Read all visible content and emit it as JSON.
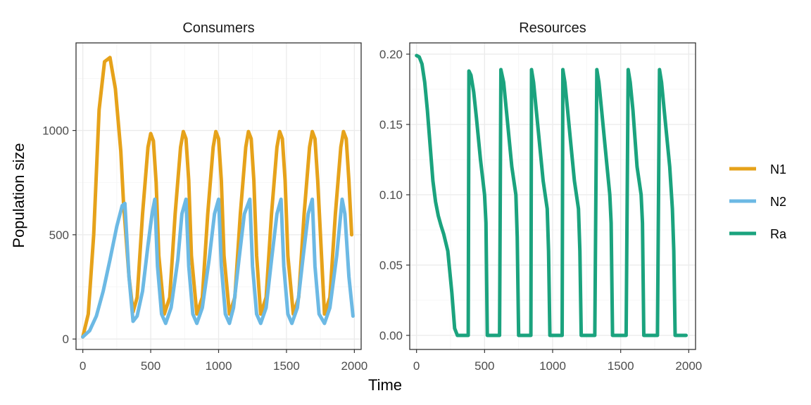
{
  "chart_data": {
    "type": "line",
    "xlabel": "Time",
    "ylabel": "Population size",
    "legend": {
      "placement": "right",
      "entries": [
        {
          "name": "N1",
          "color": "#E6A21A"
        },
        {
          "name": "N2",
          "color": "#6CB9E4"
        },
        {
          "name": "Ra",
          "color": "#1BA37E"
        }
      ]
    },
    "panels": [
      {
        "title": "Consumers",
        "xlim": [
          -50,
          2050
        ],
        "ylim": [
          -50,
          1420
        ],
        "xticks": [
          0,
          500,
          1000,
          1500,
          2000
        ],
        "xtick_labels": [
          "0",
          "500",
          "1000",
          "1500",
          "2000"
        ],
        "yticks": [
          0,
          500,
          1000
        ],
        "ytick_labels": [
          "0",
          "500",
          "1000"
        ],
        "grid": true,
        "series": [
          {
            "name": "N1",
            "color": "#E6A21A",
            "x": [
              0,
              40,
              80,
              120,
              160,
              200,
              240,
              280,
              300,
              340,
              370,
              400,
              440,
              480,
              500,
              520,
              540,
              560,
              600,
              640,
              680,
              720,
              740,
              760,
              780,
              800,
              840,
              880,
              920,
              960,
              980,
              1000,
              1020,
              1040,
              1080,
              1120,
              1160,
              1200,
              1220,
              1240,
              1260,
              1280,
              1310,
              1350,
              1390,
              1430,
              1450,
              1470,
              1490,
              1510,
              1550,
              1590,
              1630,
              1670,
              1690,
              1710,
              1730,
              1780,
              1820,
              1860,
              1900,
              1920,
              1940,
              1960,
              1980
            ],
            "y": [
              10,
              120,
              500,
              1100,
              1330,
              1350,
              1200,
              900,
              650,
              300,
              130,
              200,
              600,
              920,
              985,
              950,
              750,
              400,
              120,
              200,
              600,
              920,
              995,
              960,
              760,
              400,
              120,
              200,
              600,
              920,
              995,
              960,
              760,
              400,
              120,
              200,
              600,
              920,
              995,
              960,
              760,
              400,
              120,
              200,
              600,
              920,
              995,
              960,
              760,
              400,
              120,
              200,
              600,
              920,
              995,
              960,
              760,
              120,
              200,
              600,
              920,
              995,
              960,
              760,
              500
            ]
          },
          {
            "name": "N2",
            "color": "#6CB9E4",
            "x": [
              0,
              50,
              100,
              150,
              200,
              250,
              290,
              310,
              340,
              370,
              400,
              440,
              480,
              510,
              530,
              550,
              580,
              610,
              650,
              700,
              730,
              760,
              780,
              810,
              840,
              880,
              930,
              970,
              1000,
              1020,
              1050,
              1080,
              1110,
              1150,
              1190,
              1230,
              1250,
              1280,
              1310,
              1350,
              1390,
              1430,
              1460,
              1480,
              1510,
              1540,
              1580,
              1620,
              1660,
              1690,
              1710,
              1740,
              1780,
              1820,
              1870,
              1910,
              1930,
              1960,
              1990
            ],
            "y": [
              10,
              40,
              110,
              230,
              380,
              540,
              640,
              650,
              300,
              85,
              110,
              230,
              450,
              600,
              670,
              350,
              120,
              75,
              150,
              380,
              600,
              670,
              350,
              120,
              75,
              150,
              380,
              600,
              670,
              350,
              120,
              75,
              150,
              380,
              600,
              670,
              350,
              120,
              75,
              150,
              380,
              600,
              670,
              350,
              120,
              75,
              150,
              380,
              600,
              670,
              350,
              120,
              75,
              150,
              400,
              670,
              600,
              300,
              110
            ]
          }
        ]
      },
      {
        "title": "Resources",
        "xlim": [
          -50,
          2050
        ],
        "ylim": [
          -0.01,
          0.208
        ],
        "xticks": [
          0,
          500,
          1000,
          1500,
          2000
        ],
        "xtick_labels": [
          "0",
          "500",
          "1000",
          "1500",
          "2000"
        ],
        "yticks": [
          0,
          0.05,
          0.1,
          0.15,
          0.2
        ],
        "ytick_labels": [
          "0.00",
          "0.05",
          "0.10",
          "0.15",
          "0.20"
        ],
        "grid": true,
        "series": [
          {
            "name": "Ra",
            "color": "#1BA37E",
            "x": [
              0,
              20,
              40,
              60,
              80,
              100,
              120,
              140,
              160,
              180,
              200,
              230,
              260,
              280,
              300,
              310,
              330,
              360,
              380,
              385,
              400,
              420,
              440,
              470,
              500,
              510,
              520,
              560,
              600,
              610,
              620,
              640,
              660,
              700,
              730,
              740,
              750,
              800,
              840,
              845,
              860,
              880,
              900,
              930,
              960,
              970,
              980,
              1020,
              1070,
              1075,
              1090,
              1110,
              1130,
              1160,
              1190,
              1200,
              1210,
              1250,
              1300,
              1310,
              1325,
              1340,
              1360,
              1400,
              1420,
              1430,
              1440,
              1480,
              1530,
              1540,
              1555,
              1570,
              1590,
              1620,
              1650,
              1660,
              1670,
              1710,
              1760,
              1770,
              1785,
              1800,
              1820,
              1860,
              1880,
              1890,
              1900,
              1950,
              1980
            ],
            "y": [
              0.199,
              0.198,
              0.193,
              0.18,
              0.16,
              0.135,
              0.11,
              0.095,
              0.085,
              0.078,
              0.072,
              0.06,
              0.03,
              0.005,
              0.0,
              0.0,
              0.0,
              0.0,
              0.0,
              0.188,
              0.185,
              0.173,
              0.155,
              0.125,
              0.1,
              0.08,
              0.0,
              0.0,
              0.0,
              0.0,
              0.189,
              0.18,
              0.16,
              0.12,
              0.1,
              0.07,
              0.0,
              0.0,
              0.0,
              0.189,
              0.18,
              0.16,
              0.14,
              0.11,
              0.09,
              0.06,
              0.0,
              0.0,
              0.0,
              0.189,
              0.18,
              0.16,
              0.14,
              0.11,
              0.09,
              0.06,
              0.0,
              0.0,
              0.0,
              0.0,
              0.189,
              0.18,
              0.16,
              0.12,
              0.1,
              0.08,
              0.0,
              0.0,
              0.0,
              0.0,
              0.189,
              0.18,
              0.16,
              0.12,
              0.1,
              0.08,
              0.0,
              0.0,
              0.0,
              0.0,
              0.189,
              0.18,
              0.16,
              0.12,
              0.09,
              0.06,
              0.0,
              0.0,
              0.0
            ]
          }
        ]
      }
    ]
  }
}
